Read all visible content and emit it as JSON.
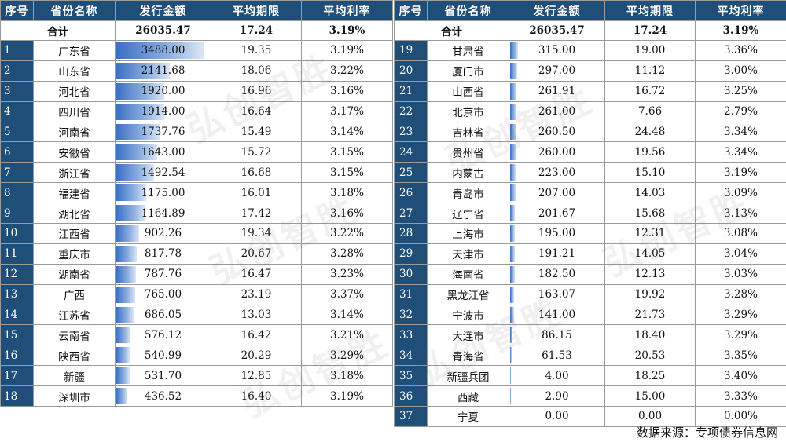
{
  "headers": [
    "序号",
    "省份名称",
    "发行金额",
    "平均期限",
    "平均利率"
  ],
  "total": {
    "label": "合计",
    "amount": "26035.47",
    "term": "17.24",
    "rate": "3.19%"
  },
  "max_amount": 3488.0,
  "left_rows": [
    {
      "seq": "1",
      "name": "广东省",
      "amount": "3488.00",
      "amount_value": 3488.0,
      "term": "19.35",
      "rate": "3.19%"
    },
    {
      "seq": "2",
      "name": "山东省",
      "amount": "2141.68",
      "amount_value": 2141.68,
      "term": "18.06",
      "rate": "3.22%"
    },
    {
      "seq": "3",
      "name": "河北省",
      "amount": "1920.00",
      "amount_value": 1920.0,
      "term": "16.96",
      "rate": "3.16%"
    },
    {
      "seq": "4",
      "name": "四川省",
      "amount": "1914.00",
      "amount_value": 1914.0,
      "term": "16.64",
      "rate": "3.17%"
    },
    {
      "seq": "5",
      "name": "河南省",
      "amount": "1737.76",
      "amount_value": 1737.76,
      "term": "15.49",
      "rate": "3.14%"
    },
    {
      "seq": "6",
      "name": "安徽省",
      "amount": "1643.00",
      "amount_value": 1643.0,
      "term": "15.72",
      "rate": "3.15%"
    },
    {
      "seq": "7",
      "name": "浙江省",
      "amount": "1492.54",
      "amount_value": 1492.54,
      "term": "16.68",
      "rate": "3.15%"
    },
    {
      "seq": "8",
      "name": "福建省",
      "amount": "1175.00",
      "amount_value": 1175.0,
      "term": "16.01",
      "rate": "3.18%"
    },
    {
      "seq": "9",
      "name": "湖北省",
      "amount": "1164.89",
      "amount_value": 1164.89,
      "term": "17.42",
      "rate": "3.16%"
    },
    {
      "seq": "10",
      "name": "江西省",
      "amount": "902.26",
      "amount_value": 902.26,
      "term": "19.34",
      "rate": "3.22%"
    },
    {
      "seq": "11",
      "name": "重庆市",
      "amount": "817.78",
      "amount_value": 817.78,
      "term": "20.67",
      "rate": "3.28%"
    },
    {
      "seq": "12",
      "name": "湖南省",
      "amount": "787.76",
      "amount_value": 787.76,
      "term": "16.47",
      "rate": "3.23%"
    },
    {
      "seq": "13",
      "name": "广西",
      "amount": "765.00",
      "amount_value": 765.0,
      "term": "23.19",
      "rate": "3.37%"
    },
    {
      "seq": "14",
      "name": "江苏省",
      "amount": "686.05",
      "amount_value": 686.05,
      "term": "13.03",
      "rate": "3.14%"
    },
    {
      "seq": "15",
      "name": "云南省",
      "amount": "576.12",
      "amount_value": 576.12,
      "term": "16.42",
      "rate": "3.21%"
    },
    {
      "seq": "16",
      "name": "陕西省",
      "amount": "540.99",
      "amount_value": 540.99,
      "term": "20.29",
      "rate": "3.29%"
    },
    {
      "seq": "17",
      "name": "新疆",
      "amount": "531.70",
      "amount_value": 531.7,
      "term": "12.85",
      "rate": "3.18%"
    },
    {
      "seq": "18",
      "name": "深圳市",
      "amount": "436.52",
      "amount_value": 436.52,
      "term": "16.40",
      "rate": "3.19%"
    }
  ],
  "right_rows": [
    {
      "seq": "19",
      "name": "甘肃省",
      "amount": "315.00",
      "amount_value": 315.0,
      "term": "19.00",
      "rate": "3.36%"
    },
    {
      "seq": "20",
      "name": "厦门市",
      "amount": "297.00",
      "amount_value": 297.0,
      "term": "11.12",
      "rate": "3.00%"
    },
    {
      "seq": "21",
      "name": "山西省",
      "amount": "261.91",
      "amount_value": 261.91,
      "term": "16.72",
      "rate": "3.25%"
    },
    {
      "seq": "22",
      "name": "北京市",
      "amount": "261.00",
      "amount_value": 261.0,
      "term": "7.66",
      "rate": "2.79%"
    },
    {
      "seq": "23",
      "name": "吉林省",
      "amount": "260.50",
      "amount_value": 260.5,
      "term": "24.48",
      "rate": "3.34%"
    },
    {
      "seq": "24",
      "name": "贵州省",
      "amount": "260.00",
      "amount_value": 260.0,
      "term": "19.56",
      "rate": "3.34%"
    },
    {
      "seq": "25",
      "name": "内蒙古",
      "amount": "223.00",
      "amount_value": 223.0,
      "term": "15.10",
      "rate": "3.19%"
    },
    {
      "seq": "26",
      "name": "青岛市",
      "amount": "207.00",
      "amount_value": 207.0,
      "term": "14.03",
      "rate": "3.09%"
    },
    {
      "seq": "27",
      "name": "辽宁省",
      "amount": "201.67",
      "amount_value": 201.67,
      "term": "15.68",
      "rate": "3.13%"
    },
    {
      "seq": "28",
      "name": "上海市",
      "amount": "195.00",
      "amount_value": 195.0,
      "term": "12.31",
      "rate": "3.08%"
    },
    {
      "seq": "29",
      "name": "天津市",
      "amount": "191.21",
      "amount_value": 191.21,
      "term": "14.05",
      "rate": "3.04%"
    },
    {
      "seq": "30",
      "name": "海南省",
      "amount": "182.50",
      "amount_value": 182.5,
      "term": "12.13",
      "rate": "3.03%"
    },
    {
      "seq": "31",
      "name": "黑龙江省",
      "amount": "163.07",
      "amount_value": 163.07,
      "term": "19.92",
      "rate": "3.28%"
    },
    {
      "seq": "32",
      "name": "宁波市",
      "amount": "141.00",
      "amount_value": 141.0,
      "term": "21.73",
      "rate": "3.29%"
    },
    {
      "seq": "33",
      "name": "大连市",
      "amount": "86.15",
      "amount_value": 86.15,
      "term": "18.40",
      "rate": "3.29%"
    },
    {
      "seq": "34",
      "name": "青海省",
      "amount": "61.53",
      "amount_value": 61.53,
      "term": "20.53",
      "rate": "3.35%"
    },
    {
      "seq": "35",
      "name": "新疆兵团",
      "amount": "4.00",
      "amount_value": 4.0,
      "term": "18.25",
      "rate": "3.40%"
    },
    {
      "seq": "36",
      "name": "西藏",
      "amount": "2.90",
      "amount_value": 2.9,
      "term": "15.00",
      "rate": "3.33%"
    },
    {
      "seq": "37",
      "name": "宁夏",
      "amount": "0.00",
      "amount_value": 0.0,
      "term": "0.00",
      "rate": "0.00%"
    }
  ],
  "watermark": "弘创智胜",
  "source": "数据来源：专项债券信息网",
  "colors": {
    "header_bg": "#1f4e79",
    "bar": "#3a6fc4"
  }
}
